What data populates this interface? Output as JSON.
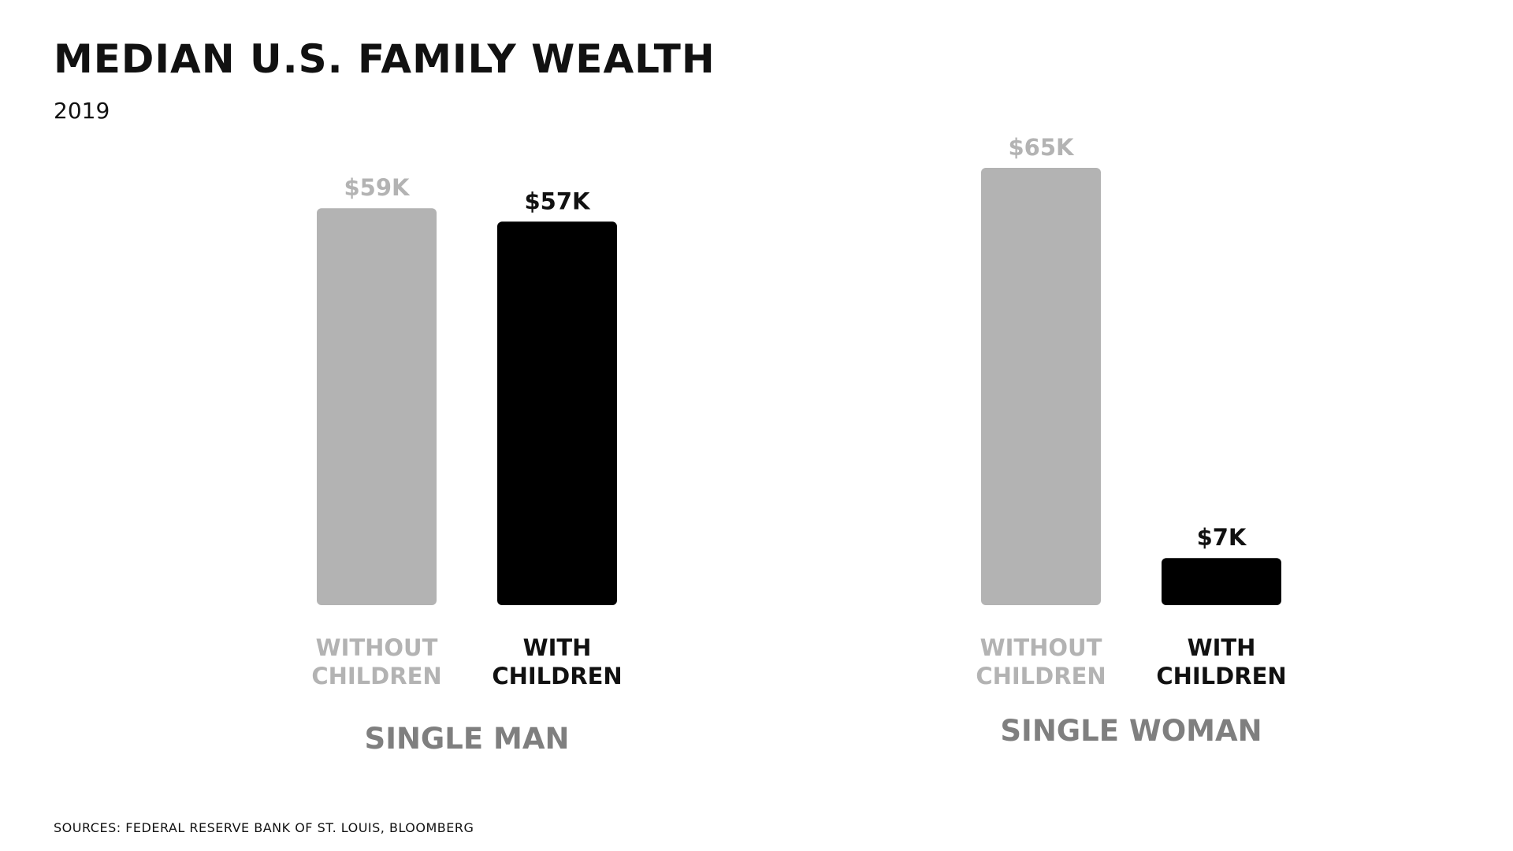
{
  "title": "MEDIAN U.S. FAMILY WEALTH",
  "subtitle": "2019",
  "source": "SOURCES: FEDERAL RESERVE BANK OF ST. LOUIS, BLOOMBERG",
  "colors": {
    "without_children": "#b3b3b3",
    "with_children": "#000000",
    "group_label": "#7f7f7f",
    "text": "#111111"
  },
  "chart_data": {
    "type": "bar",
    "title": "MEDIAN U.S. FAMILY WEALTH",
    "subtitle": "2019",
    "unit": "USD (thousands)",
    "grid": false,
    "groups": [
      {
        "name": "SINGLE MAN",
        "bars": [
          {
            "category": "WITHOUT CHILDREN",
            "category_lines": [
              "WITHOUT",
              "CHILDREN"
            ],
            "value": 59,
            "label": "$59K"
          },
          {
            "category": "WITH CHILDREN",
            "category_lines": [
              "WITH",
              "CHILDREN"
            ],
            "value": 57,
            "label": "$57K"
          }
        ]
      },
      {
        "name": "SINGLE WOMAN",
        "bars": [
          {
            "category": "WITHOUT CHILDREN",
            "category_lines": [
              "WITHOUT",
              "CHILDREN"
            ],
            "value": 65,
            "label": "$65K"
          },
          {
            "category": "WITH CHILDREN",
            "category_lines": [
              "WITH",
              "CHILDREN"
            ],
            "value": 7,
            "label": "$7K"
          }
        ]
      }
    ],
    "ylim": [
      0,
      65
    ]
  }
}
